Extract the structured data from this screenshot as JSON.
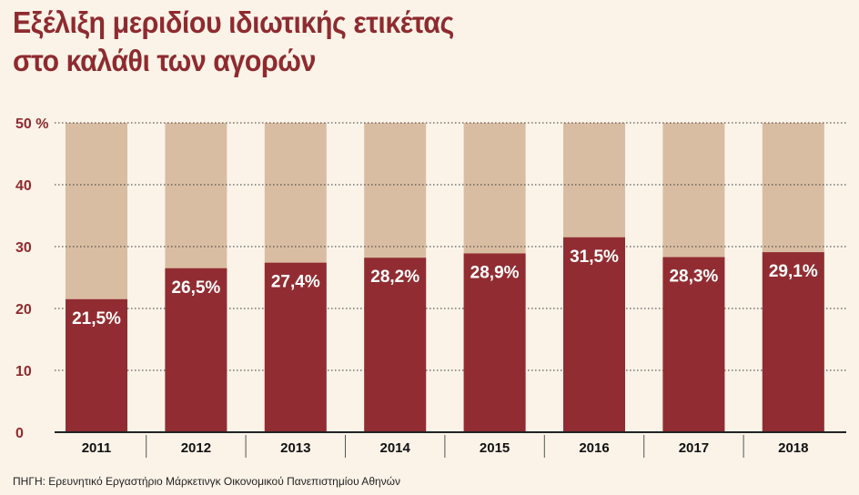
{
  "title_line1": "Εξέλιξη μεριδίου ιδιωτικής ετικέτας",
  "title_line2": "στο καλάθι των αγορών",
  "source": "ΠΗΓΗ: Ερευνητικό Εργαστήριο Μάρκετινγκ Οικονομικού Πανεπιστημίου Αθηνών",
  "colors": {
    "bar": "#912d32",
    "background_bar": "#d9bda2",
    "title": "#8e2b2f",
    "grid": "#333333"
  },
  "chart_data": {
    "type": "bar",
    "categories": [
      "2011",
      "2012",
      "2013",
      "2014",
      "2015",
      "2016",
      "2017",
      "2018"
    ],
    "values": [
      21.5,
      26.5,
      27.4,
      28.2,
      28.9,
      31.5,
      28.3,
      29.1
    ],
    "data_labels": [
      "21,5%",
      "26,5%",
      "27,4%",
      "28,2%",
      "28,9%",
      "31,5%",
      "28,3%",
      "29,1%"
    ],
    "y_ticks": [
      0,
      10,
      20,
      30,
      40,
      50
    ],
    "y_tick_labels": [
      "0",
      "10",
      "20",
      "30",
      "40",
      "50 %"
    ],
    "ylim": [
      0,
      50
    ],
    "grid": true
  }
}
